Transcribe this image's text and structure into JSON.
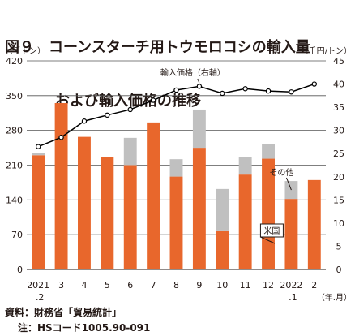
{
  "title_line1": "図９　コーンスターチ用トウモロコシの輸入量",
  "title_line2": "および輸入価格の推移",
  "source": "資料：財務省「貿易統計」",
  "note": "注：HSコード1005.90-091",
  "colors": {
    "us": "#e8672c",
    "other": "#c0c0c0",
    "line": "#000000",
    "grid": "#555555"
  },
  "chart_data": {
    "type": "bar",
    "stacked": true,
    "left_unit": "（千トン）",
    "right_unit": "（千円/トン）",
    "x_unit": "（年.月）",
    "categories": [
      "2021\n.2",
      "3",
      "4",
      "5",
      "6",
      "7",
      "8",
      "9",
      "10",
      "11",
      "12",
      "2022\n.1",
      "2"
    ],
    "ylim": [
      0,
      420
    ],
    "yticks": [
      0,
      70,
      140,
      210,
      280,
      350,
      420
    ],
    "y2lim": [
      0,
      45
    ],
    "y2ticks": [
      0,
      5,
      10,
      15,
      20,
      25,
      30,
      35,
      40,
      45
    ],
    "grid": "horizontal",
    "series": [
      {
        "name": "米国",
        "kind": "bar",
        "values": [
          230,
          335,
          267,
          227,
          210,
          296,
          187,
          245,
          77,
          191,
          223,
          142,
          180
        ]
      },
      {
        "name": "その他",
        "kind": "bar",
        "values": [
          4,
          0,
          0,
          0,
          55,
          0,
          35,
          77,
          85,
          36,
          30,
          36,
          0
        ]
      },
      {
        "name": "輸入価格（右軸）",
        "kind": "line",
        "axis": "right",
        "values": [
          26.5,
          28.5,
          32,
          33.3,
          34.5,
          36.5,
          38.7,
          39.5,
          38,
          39,
          38.5,
          38.3,
          40
        ]
      }
    ],
    "annotations": [
      "輸入価格（右軸）",
      "その他",
      "米国"
    ]
  }
}
